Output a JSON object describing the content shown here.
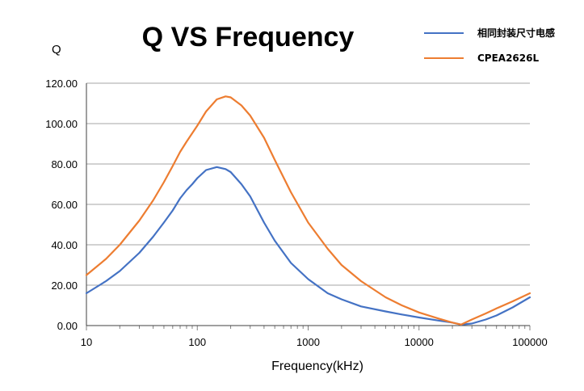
{
  "chart_data": {
    "type": "line",
    "title": "Q VS Frequency",
    "ylabel": "Q",
    "xlabel": "Frequency(kHz)",
    "xscale": "log",
    "xlim": [
      10,
      100000
    ],
    "ylim": [
      0,
      120
    ],
    "grid": true,
    "legend_position": "top-right",
    "x_ticks": [
      "10",
      "100",
      "1000",
      "10000",
      "100000"
    ],
    "y_ticks": [
      "0.00",
      "20.00",
      "40.00",
      "60.00",
      "80.00",
      "100.00",
      "120.00"
    ],
    "series": [
      {
        "name": "相同封装尺寸电感",
        "color": "#4472C4",
        "x": [
          10,
          15,
          20,
          30,
          40,
          50,
          60,
          70,
          80,
          90,
          100,
          120,
          150,
          180,
          200,
          250,
          300,
          400,
          500,
          700,
          1000,
          1500,
          2000,
          3000,
          5000,
          7000,
          10000,
          15000,
          20000,
          24000,
          30000,
          40000,
          50000,
          70000,
          100000
        ],
        "values": [
          16,
          22,
          27,
          36,
          44,
          51,
          57,
          63,
          67,
          70,
          73,
          77,
          78.5,
          77.5,
          76,
          70,
          64,
          51,
          42,
          31,
          23,
          16,
          13,
          9.5,
          7,
          5.5,
          4,
          2.5,
          1.5,
          0.5,
          1,
          3,
          5,
          9,
          14
        ]
      },
      {
        "name": "CPEA2626L",
        "color": "#ED7D31",
        "x": [
          10,
          15,
          20,
          30,
          40,
          50,
          60,
          70,
          80,
          100,
          120,
          150,
          180,
          200,
          250,
          300,
          400,
          500,
          700,
          1000,
          1500,
          2000,
          3000,
          5000,
          7000,
          10000,
          15000,
          20000,
          24000,
          30000,
          40000,
          50000,
          70000,
          100000
        ],
        "values": [
          25,
          33,
          40,
          52,
          62,
          71,
          79,
          86,
          91,
          99,
          106,
          112,
          113.5,
          113,
          109,
          104,
          93,
          82,
          66,
          51,
          38,
          30,
          22,
          14,
          10,
          6.5,
          3.5,
          1.5,
          0.5,
          3,
          6,
          8.5,
          12,
          16
        ]
      }
    ]
  }
}
